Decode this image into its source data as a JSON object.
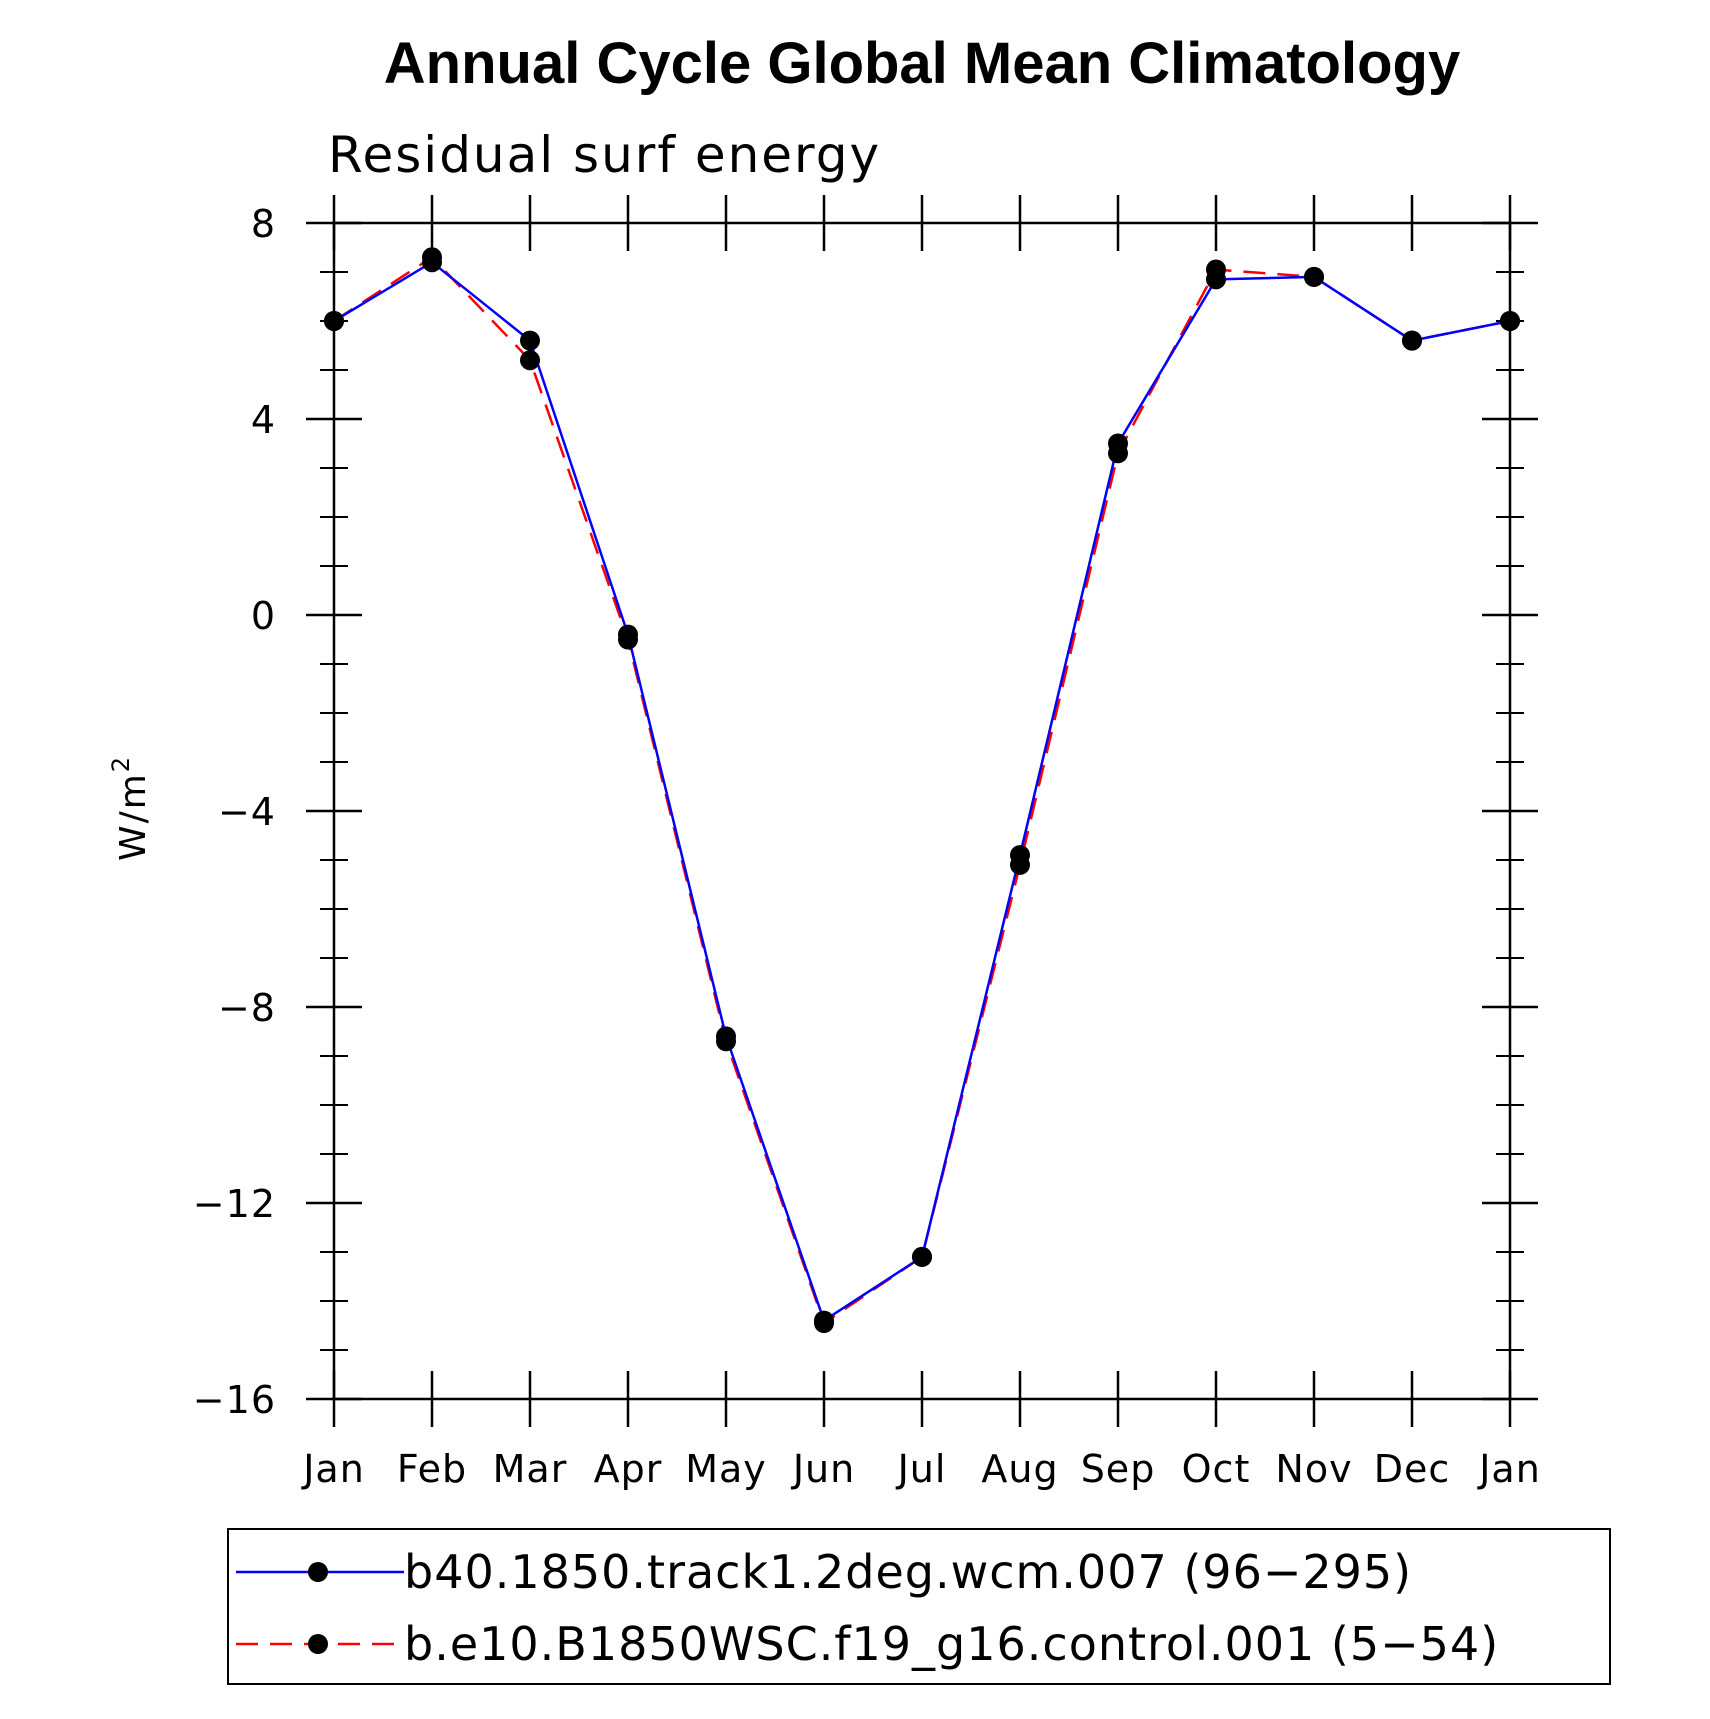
{
  "chart_data": {
    "type": "line",
    "title": "Annual Cycle Global Mean Climatology",
    "subtitle": "Residual surf energy",
    "ylabel": "W/m",
    "ylabel_superscript": "2",
    "xlabel": "",
    "categories": [
      "Jan",
      "Feb",
      "Mar",
      "Apr",
      "May",
      "Jun",
      "Jul",
      "Aug",
      "Sep",
      "Oct",
      "Nov",
      "Dec",
      "Jan"
    ],
    "ylim": [
      -16,
      8
    ],
    "yticks": [
      8,
      4,
      0,
      -4,
      -8,
      -12,
      -16
    ],
    "ytick_labels": [
      "8",
      "4",
      "0",
      "−4",
      "−8",
      "−12",
      "−16"
    ],
    "legend_position": "bottom",
    "grid": false,
    "series": [
      {
        "name": "b40.1850.track1.2deg.wcm.007 (96−295)",
        "color": "#0000ff",
        "line_style": "solid",
        "marker": "filled-circle",
        "values": [
          6.0,
          7.2,
          5.6,
          -0.4,
          -8.6,
          -14.4,
          -13.1,
          -4.9,
          3.5,
          6.85,
          6.9,
          5.6,
          6.0
        ]
      },
      {
        "name": "b.e10.B1850WSC.f19_g16.control.001 (5−54)",
        "color": "#ff0000",
        "line_style": "dashed",
        "marker": "filled-circle",
        "values": [
          6.0,
          7.3,
          5.2,
          -0.5,
          -8.7,
          -14.45,
          -13.1,
          -5.1,
          3.3,
          7.05,
          6.9,
          5.6,
          6.0
        ]
      }
    ]
  }
}
